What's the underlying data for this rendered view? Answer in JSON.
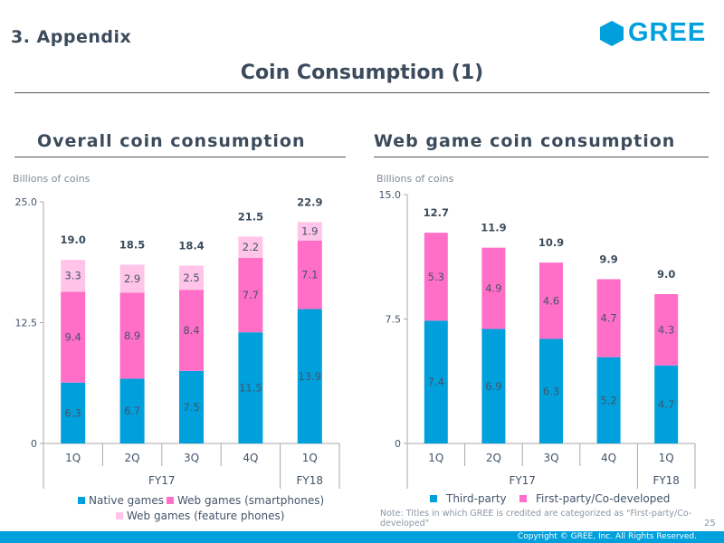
{
  "header": {
    "section": "3. Appendix",
    "logo_text": "GREE",
    "title": "Coin Consumption (1)"
  },
  "colors": {
    "native": "#00a0dc",
    "web_smartphone": "#ff6ec7",
    "web_feature": "#ffc4e8",
    "brand": "#00a0dc"
  },
  "chart_data": [
    {
      "type": "bar",
      "stacked": true,
      "title": "Overall coin consumption",
      "ylabel": "Billions of coins",
      "ylim": [
        0,
        25.0
      ],
      "yticks": [
        "0",
        "12.5",
        "25.0"
      ],
      "categories": [
        "1Q",
        "2Q",
        "3Q",
        "4Q",
        "1Q"
      ],
      "groups": [
        {
          "label": "FY17",
          "count": 4
        },
        {
          "label": "FY18",
          "count": 1
        }
      ],
      "totals": [
        "19.0",
        "18.5",
        "18.4",
        "21.5",
        "22.9"
      ],
      "series": [
        {
          "name": "Native games",
          "color": "#00a0dc",
          "values": [
            6.3,
            6.7,
            7.5,
            11.5,
            13.9
          ]
        },
        {
          "name": "Web games (smartphones)",
          "color": "#ff6ec7",
          "values": [
            9.4,
            8.9,
            8.4,
            7.7,
            7.1
          ]
        },
        {
          "name": "Web games (feature phones)",
          "color": "#ffc4e8",
          "values": [
            3.3,
            2.9,
            2.5,
            2.2,
            1.9
          ]
        }
      ],
      "legend": "bottom"
    },
    {
      "type": "bar",
      "stacked": true,
      "title": "Web game coin consumption",
      "ylabel": "Billions of coins",
      "ylim": [
        0,
        15.0
      ],
      "yticks": [
        "0",
        "7.5",
        "15.0"
      ],
      "categories": [
        "1Q",
        "2Q",
        "3Q",
        "4Q",
        "1Q"
      ],
      "groups": [
        {
          "label": "FY17",
          "count": 4
        },
        {
          "label": "FY18",
          "count": 1
        }
      ],
      "totals": [
        "12.7",
        "11.9",
        "10.9",
        "9.9",
        "9.0"
      ],
      "series": [
        {
          "name": "Third-party",
          "color": "#00a0dc",
          "values": [
            7.4,
            6.9,
            6.3,
            5.2,
            4.7
          ]
        },
        {
          "name": "First-party/Co-developed",
          "color": "#ff6ec7",
          "values": [
            5.3,
            4.9,
            4.6,
            4.7,
            4.3
          ]
        }
      ],
      "legend": "bottom"
    }
  ],
  "note": "Note: Titles in which GREE is credited are categorized as \"First-party/Co-developed\"",
  "page_number": "25",
  "footer": {
    "copyright": "Copyright © GREE, Inc. All Rights Reserved."
  }
}
